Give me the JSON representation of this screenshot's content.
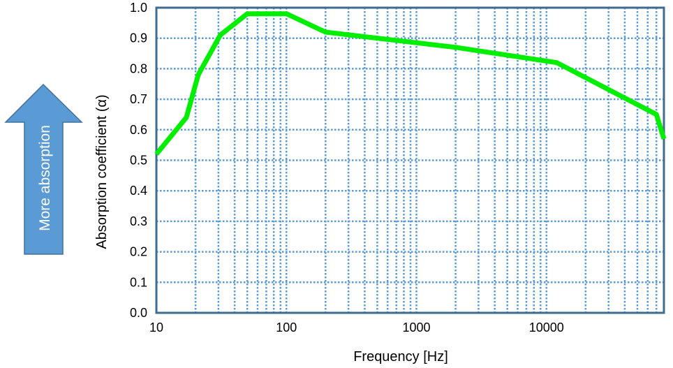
{
  "chart_data": {
    "type": "line",
    "title": "",
    "xlabel": "Frequency [Hz]",
    "ylabel": "Absorption coefficient (α)",
    "x_scale": "log",
    "xlim": [
      10,
      80000
    ],
    "ylim": [
      0,
      1
    ],
    "x_tick_labels": [
      "10",
      "100",
      "1000",
      "10000"
    ],
    "y_tick_labels": [
      "0.0",
      "0.1",
      "0.2",
      "0.3",
      "0.4",
      "0.5",
      "0.6",
      "0.7",
      "0.8",
      "0.9",
      "1.0"
    ],
    "grid": true,
    "legend": "none",
    "series": [
      {
        "x": [
          10,
          17,
          21,
          31,
          50,
          100,
          200,
          2000,
          12000,
          70000,
          80000
        ],
        "y": [
          0.52,
          0.64,
          0.78,
          0.91,
          0.98,
          0.98,
          0.92,
          0.87,
          0.82,
          0.65,
          0.57
        ]
      }
    ],
    "colors": {
      "line": "#00ee00",
      "grid": "#5b9bd5",
      "frame": "#3f6b91",
      "arrow": "#5b9bd5"
    }
  },
  "annotation": {
    "arrow_text": "More absorption"
  }
}
